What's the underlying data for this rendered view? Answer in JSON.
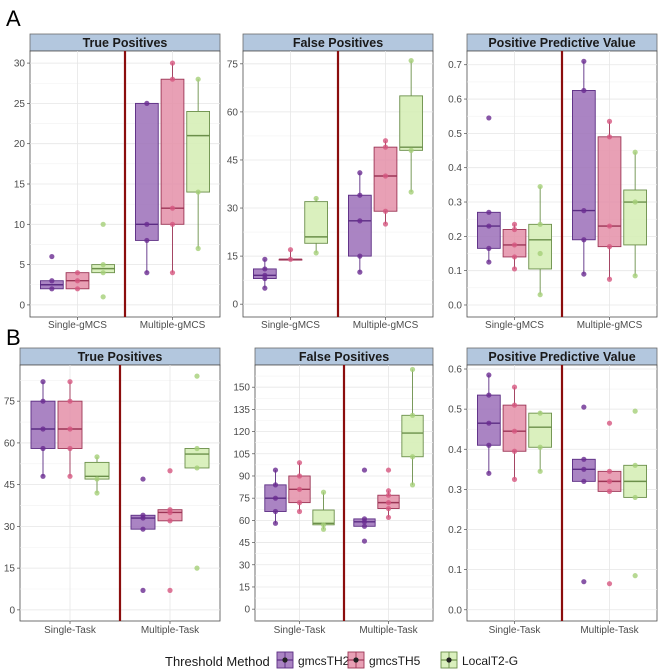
{
  "figure": {
    "panel_labels": [
      "A",
      "B"
    ],
    "legend": {
      "title": "Threshold Method",
      "entries": [
        {
          "label": "gmcsTH2",
          "fill": "#9b6fb8",
          "stroke": "#5b2c83",
          "point": "#6a2c91"
        },
        {
          "label": "gmcsTH5",
          "fill": "#e48fa8",
          "stroke": "#9c3556",
          "point": "#d6567f"
        },
        {
          "label": "LocalT2-G",
          "fill": "#d3edb3",
          "stroke": "#6b8f4a",
          "point": "#a5cf78"
        }
      ]
    }
  },
  "chart_data": [
    {
      "id": "A-true-positives",
      "row": "A",
      "type": "boxplot",
      "title": "True Positives",
      "categories": [
        "Single-gMCS",
        "Multiple-gMCS"
      ],
      "series": [
        "gmcsTH2",
        "gmcsTH5",
        "LocalT2-G"
      ],
      "ylim": [
        -1.5,
        31.5
      ],
      "yticks": [
        0,
        5,
        10,
        15,
        20,
        25,
        30
      ],
      "boxes": [
        [
          {
            "q1": 2,
            "med": 2.5,
            "q3": 3,
            "lo": 2,
            "hi": 3,
            "pts": [
              2,
              3,
              6
            ]
          },
          {
            "q1": 2,
            "med": 3,
            "q3": 4,
            "lo": 2,
            "hi": 4,
            "pts": [
              2,
              3,
              4
            ]
          },
          {
            "q1": 4,
            "med": 4.5,
            "q3": 5,
            "lo": 4,
            "hi": 5,
            "pts": [
              1,
              4,
              5,
              10
            ]
          }
        ],
        [
          {
            "q1": 8,
            "med": 10,
            "q3": 25,
            "lo": 4,
            "hi": 25,
            "pts": [
              4,
              8,
              10,
              25
            ]
          },
          {
            "q1": 10,
            "med": 12,
            "q3": 28,
            "lo": 4,
            "hi": 30,
            "pts": [
              4,
              10,
              12,
              28,
              30
            ]
          },
          {
            "q1": 14,
            "med": 21,
            "q3": 24,
            "lo": 7,
            "hi": 28,
            "pts": [
              7,
              14,
              28
            ]
          }
        ]
      ]
    },
    {
      "id": "A-false-positives",
      "row": "A",
      "type": "boxplot",
      "title": "False Positives",
      "categories": [
        "Single-gMCS",
        "Multiple-gMCS"
      ],
      "series": [
        "gmcsTH2",
        "gmcsTH5",
        "LocalT2-G"
      ],
      "ylim": [
        -4,
        79
      ],
      "yticks": [
        0,
        15,
        30,
        45,
        60,
        75
      ],
      "boxes": [
        [
          {
            "q1": 8,
            "med": 9,
            "q3": 11,
            "lo": 5,
            "hi": 14,
            "pts": [
              5,
              8,
              9,
              11,
              14
            ]
          },
          {
            "q1": 14,
            "med": 14,
            "q3": 14,
            "lo": 14,
            "hi": 17,
            "pts": [
              14,
              17
            ]
          },
          {
            "q1": 19,
            "med": 21,
            "q3": 32,
            "lo": 16,
            "hi": 33,
            "pts": [
              16,
              33
            ]
          }
        ],
        [
          {
            "q1": 15,
            "med": 26,
            "q3": 34,
            "lo": 10,
            "hi": 41,
            "pts": [
              10,
              15,
              26,
              34,
              41
            ]
          },
          {
            "q1": 29,
            "med": 40,
            "q3": 49,
            "lo": 25,
            "hi": 51,
            "pts": [
              25,
              29,
              40,
              49,
              51
            ]
          },
          {
            "q1": 48,
            "med": 49,
            "q3": 65,
            "lo": 35,
            "hi": 76,
            "pts": [
              35,
              48,
              76
            ]
          }
        ]
      ]
    },
    {
      "id": "A-ppv",
      "row": "A",
      "type": "boxplot",
      "title": "Positive Predictive Value",
      "categories": [
        "Single-gMCS",
        "Multiple-gMCS"
      ],
      "series": [
        "gmcsTH2",
        "gmcsTH5",
        "LocalT2-G"
      ],
      "ylim": [
        -0.035,
        0.74
      ],
      "yticks": [
        0.0,
        0.1,
        0.2,
        0.3,
        0.4,
        0.5,
        0.6,
        0.7
      ],
      "ytick_labels": [
        "0.0",
        "0.1",
        "0.2",
        "0.3",
        "0.4",
        "0.5",
        "0.6",
        "0.7"
      ],
      "boxes": [
        [
          {
            "q1": 0.165,
            "med": 0.23,
            "q3": 0.27,
            "lo": 0.125,
            "hi": 0.27,
            "pts": [
              0.125,
              0.165,
              0.23,
              0.27,
              0.545
            ]
          },
          {
            "q1": 0.14,
            "med": 0.175,
            "q3": 0.22,
            "lo": 0.105,
            "hi": 0.235,
            "pts": [
              0.105,
              0.14,
              0.175,
              0.22,
              0.235
            ]
          },
          {
            "q1": 0.105,
            "med": 0.19,
            "q3": 0.235,
            "lo": 0.03,
            "hi": 0.345,
            "pts": [
              0.03,
              0.15,
              0.235,
              0.345
            ]
          }
        ],
        [
          {
            "q1": 0.19,
            "med": 0.275,
            "q3": 0.625,
            "lo": 0.09,
            "hi": 0.71,
            "pts": [
              0.09,
              0.19,
              0.275,
              0.625,
              0.71
            ]
          },
          {
            "q1": 0.17,
            "med": 0.23,
            "q3": 0.49,
            "lo": 0.075,
            "hi": 0.535,
            "pts": [
              0.075,
              0.17,
              0.23,
              0.49,
              0.535
            ]
          },
          {
            "q1": 0.175,
            "med": 0.3,
            "q3": 0.335,
            "lo": 0.085,
            "hi": 0.445,
            "pts": [
              0.085,
              0.3,
              0.445
            ]
          }
        ]
      ]
    },
    {
      "id": "B-true-positives",
      "row": "B",
      "type": "boxplot",
      "title": "True Positives",
      "categories": [
        "Single-Task",
        "Multiple-Task"
      ],
      "series": [
        "gmcsTH2",
        "gmcsTH5",
        "LocalT2-G"
      ],
      "ylim": [
        -4,
        88
      ],
      "yticks": [
        0,
        15,
        30,
        45,
        60,
        75
      ],
      "boxes": [
        [
          {
            "q1": 58,
            "med": 65,
            "q3": 75,
            "lo": 48,
            "hi": 82,
            "pts": [
              48,
              58,
              65,
              75,
              82
            ]
          },
          {
            "q1": 58,
            "med": 65,
            "q3": 75,
            "lo": 48,
            "hi": 82,
            "pts": [
              48,
              58,
              65,
              75,
              82
            ]
          },
          {
            "q1": 47,
            "med": 48,
            "q3": 53,
            "lo": 42,
            "hi": 55,
            "pts": [
              42,
              47,
              55
            ]
          }
        ],
        [
          {
            "q1": 29,
            "med": 33,
            "q3": 34,
            "lo": 29,
            "hi": 34,
            "pts": [
              7,
              29,
              33,
              34,
              47
            ]
          },
          {
            "q1": 32,
            "med": 35,
            "q3": 36,
            "lo": 32,
            "hi": 36,
            "pts": [
              7,
              32,
              35,
              36,
              50
            ]
          },
          {
            "q1": 51,
            "med": 56,
            "q3": 58,
            "lo": 51,
            "hi": 58,
            "pts": [
              15,
              51,
              58,
              84
            ]
          }
        ]
      ]
    },
    {
      "id": "B-false-positives",
      "row": "B",
      "type": "boxplot",
      "title": "False Positives",
      "categories": [
        "Single-Task",
        "Multiple-Task"
      ],
      "series": [
        "gmcsTH2",
        "gmcsTH5",
        "LocalT2-G"
      ],
      "ylim": [
        -8,
        165
      ],
      "yticks": [
        0,
        15,
        30,
        45,
        60,
        75,
        90,
        105,
        120,
        135,
        150
      ],
      "boxes": [
        [
          {
            "q1": 66,
            "med": 75,
            "q3": 84,
            "lo": 58,
            "hi": 94,
            "pts": [
              58,
              66,
              75,
              84,
              94
            ]
          },
          {
            "q1": 72,
            "med": 81,
            "q3": 90,
            "lo": 66,
            "hi": 99,
            "pts": [
              66,
              72,
              81,
              90,
              99
            ]
          },
          {
            "q1": 57,
            "med": 58,
            "q3": 67,
            "lo": 54,
            "hi": 79,
            "pts": [
              54,
              57,
              79
            ]
          }
        ],
        [
          {
            "q1": 56,
            "med": 59,
            "q3": 61,
            "lo": 56,
            "hi": 61,
            "pts": [
              46,
              56,
              59,
              61,
              94
            ]
          },
          {
            "q1": 68,
            "med": 72,
            "q3": 77,
            "lo": 62,
            "hi": 80,
            "pts": [
              62,
              68,
              72,
              77,
              80,
              94
            ]
          },
          {
            "q1": 103,
            "med": 119,
            "q3": 131,
            "lo": 84,
            "hi": 162,
            "pts": [
              84,
              103,
              131,
              162
            ]
          }
        ]
      ]
    },
    {
      "id": "B-ppv",
      "row": "B",
      "type": "boxplot",
      "title": "Positive Predictive Value",
      "categories": [
        "Single-Task",
        "Multiple-Task"
      ],
      "series": [
        "gmcsTH2",
        "gmcsTH5",
        "LocalT2-G"
      ],
      "ylim": [
        -0.028,
        0.61
      ],
      "yticks": [
        0.0,
        0.1,
        0.2,
        0.3,
        0.4,
        0.5,
        0.6
      ],
      "ytick_labels": [
        "0.0",
        "0.1",
        "0.2",
        "0.3",
        "0.4",
        "0.5",
        "0.6"
      ],
      "boxes": [
        [
          {
            "q1": 0.41,
            "med": 0.465,
            "q3": 0.535,
            "lo": 0.34,
            "hi": 0.585,
            "pts": [
              0.34,
              0.41,
              0.465,
              0.535,
              0.585
            ]
          },
          {
            "q1": 0.395,
            "med": 0.445,
            "q3": 0.51,
            "lo": 0.325,
            "hi": 0.555,
            "pts": [
              0.325,
              0.395,
              0.445,
              0.51,
              0.555
            ]
          },
          {
            "q1": 0.405,
            "med": 0.455,
            "q3": 0.49,
            "lo": 0.345,
            "hi": 0.495,
            "pts": [
              0.345,
              0.405,
              0.49
            ]
          }
        ],
        [
          {
            "q1": 0.32,
            "med": 0.35,
            "q3": 0.375,
            "lo": 0.32,
            "hi": 0.375,
            "pts": [
              0.07,
              0.32,
              0.35,
              0.375,
              0.505
            ]
          },
          {
            "q1": 0.295,
            "med": 0.32,
            "q3": 0.345,
            "lo": 0.295,
            "hi": 0.345,
            "pts": [
              0.065,
              0.295,
              0.32,
              0.345,
              0.465
            ]
          },
          {
            "q1": 0.28,
            "med": 0.32,
            "q3": 0.36,
            "lo": 0.28,
            "hi": 0.36,
            "pts": [
              0.085,
              0.28,
              0.36,
              0.495
            ]
          }
        ]
      ]
    }
  ]
}
